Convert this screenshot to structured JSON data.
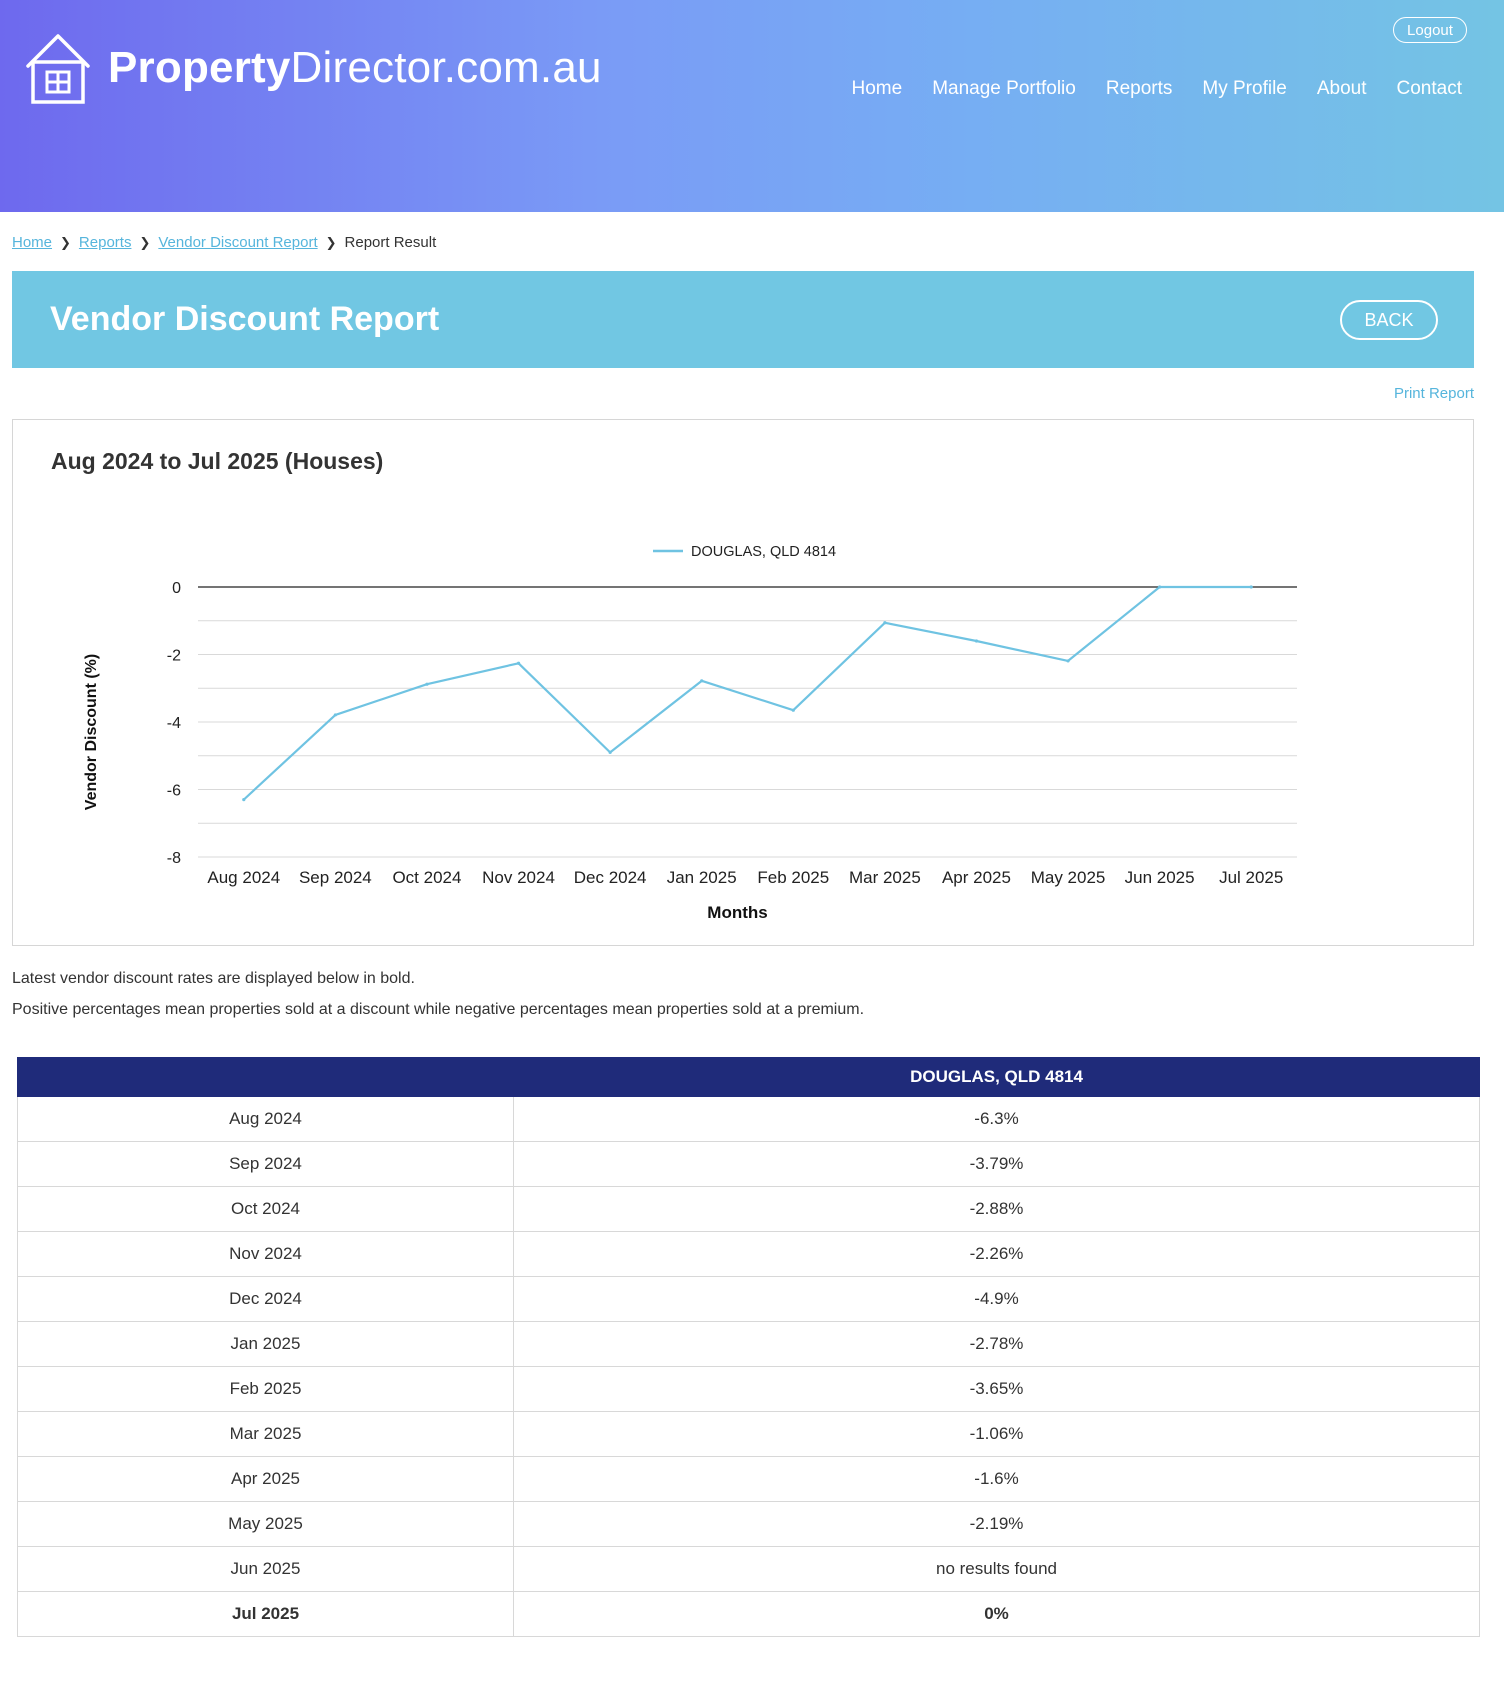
{
  "site": {
    "logo_bold": "Property",
    "logo_light": "Director.com.au",
    "logout_label": "Logout",
    "nav": [
      "Home",
      "Manage Portfolio",
      "Reports",
      "My Profile",
      "About",
      "Contact"
    ]
  },
  "breadcrumb": {
    "items": [
      "Home",
      "Reports",
      "Vendor Discount Report"
    ],
    "current": "Report Result"
  },
  "page": {
    "title": "Vendor Discount Report",
    "back_label": "BACK",
    "print_label": "Print Report"
  },
  "chart_data": {
    "type": "line",
    "title": "Aug 2024 to Jul 2025 (Houses)",
    "xlabel": "Months",
    "ylabel": "Vendor Discount (%)",
    "categories": [
      "Aug 2024",
      "Sep 2024",
      "Oct 2024",
      "Nov 2024",
      "Dec 2024",
      "Jan 2025",
      "Feb 2025",
      "Mar 2025",
      "Apr 2025",
      "May 2025",
      "Jun 2025",
      "Jul 2025"
    ],
    "series": [
      {
        "name": "DOUGLAS, QLD 4814",
        "color": "#6fc3e2",
        "values": [
          -6.3,
          -3.79,
          -2.88,
          -2.26,
          -4.9,
          -2.78,
          -3.65,
          -1.06,
          -1.6,
          -2.19,
          0,
          0
        ]
      }
    ],
    "ylim": [
      -8,
      0
    ],
    "yticks": [
      0,
      -2,
      -4,
      -6,
      -8
    ],
    "grid": true,
    "legend": "top-center"
  },
  "notes": [
    "Latest vendor discount rates are displayed below in bold.",
    "Positive percentages mean properties sold at a discount while negative percentages mean properties sold at a premium."
  ],
  "table": {
    "headers": [
      "",
      "DOUGLAS, QLD 4814"
    ],
    "rows": [
      [
        "Aug 2024",
        "-6.3%"
      ],
      [
        "Sep 2024",
        "-3.79%"
      ],
      [
        "Oct 2024",
        "-2.88%"
      ],
      [
        "Nov 2024",
        "-2.26%"
      ],
      [
        "Dec 2024",
        "-4.9%"
      ],
      [
        "Jan 2025",
        "-2.78%"
      ],
      [
        "Feb 2025",
        "-3.65%"
      ],
      [
        "Mar 2025",
        "-1.06%"
      ],
      [
        "Apr 2025",
        "-1.6%"
      ],
      [
        "May 2025",
        "-2.19%"
      ],
      [
        "Jun 2025",
        "no results found"
      ],
      [
        "Jul 2025",
        "0%"
      ]
    ],
    "bold_row": 11
  },
  "colors": {
    "accent": "#71c7e3",
    "table_header": "#1f2b7a",
    "link": "#56b5dc"
  }
}
